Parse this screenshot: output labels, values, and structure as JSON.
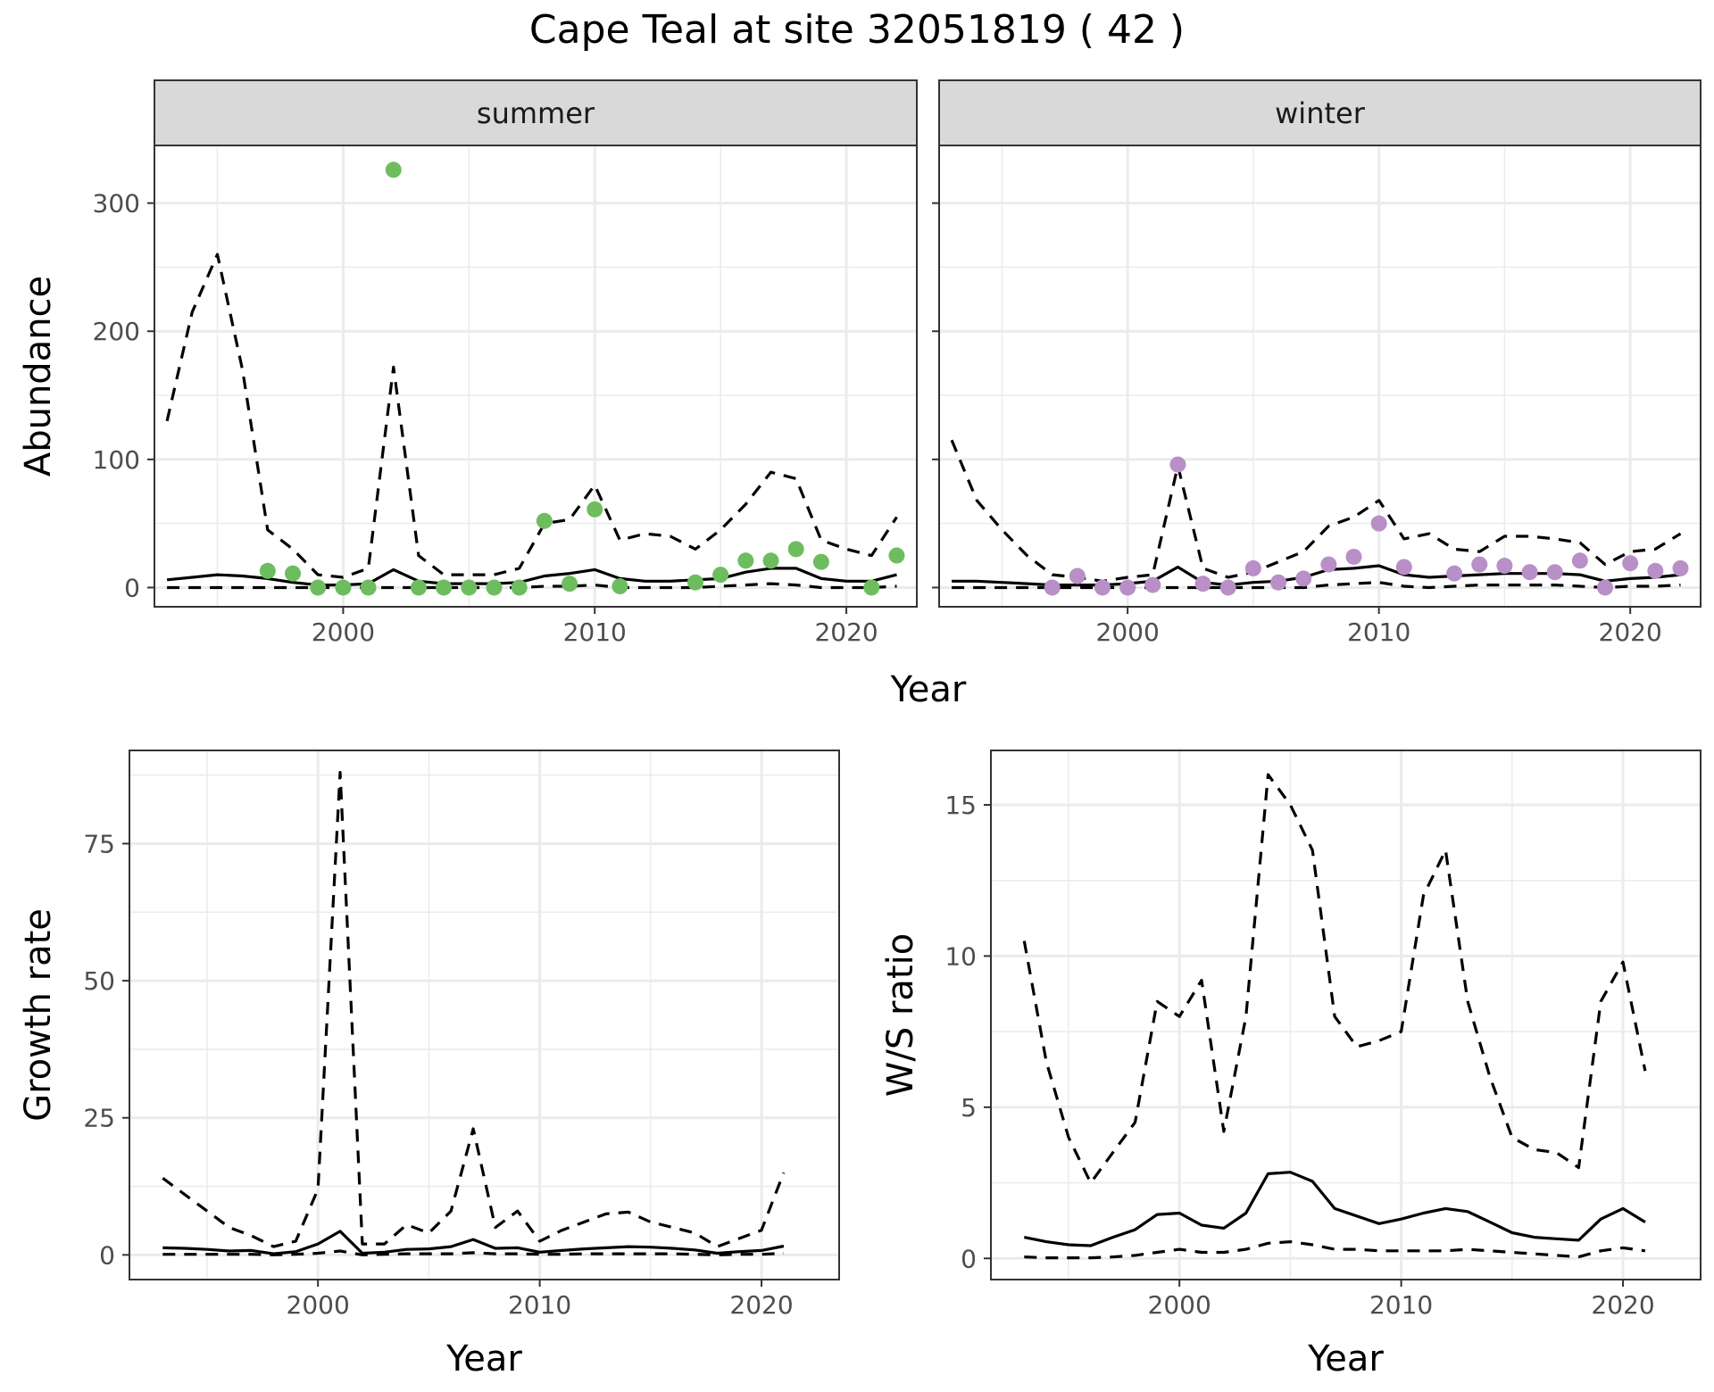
{
  "title": "Cape Teal at site 32051819 ( 42 )",
  "colors": {
    "summer_points": "#6dbd5f",
    "winter_points": "#b88fc7",
    "lines": "#000000",
    "strip_fill": "#d9d9d9",
    "grid": "#ebebeb"
  },
  "chart_data": [
    {
      "id": "summer",
      "type": "line",
      "title": "summer",
      "xlabel": "Year",
      "ylabel": "Abundance",
      "xlim": [
        1992.5,
        2022.8
      ],
      "ylim": [
        -15,
        345
      ],
      "xticks": [
        2000,
        2010,
        2020
      ],
      "yticks": [
        0,
        100,
        200,
        300
      ],
      "grid": true,
      "legend": "none",
      "x": [
        1993,
        1994,
        1995,
        1996,
        1997,
        1998,
        1999,
        2000,
        2001,
        2002,
        2003,
        2004,
        2005,
        2006,
        2007,
        2008,
        2009,
        2010,
        2011,
        2012,
        2013,
        2014,
        2015,
        2016,
        2017,
        2018,
        2019,
        2020,
        2021,
        2022
      ],
      "series": [
        {
          "role": "mean",
          "style": "solid",
          "values": [
            6,
            8,
            10,
            9,
            7,
            4,
            2,
            2,
            3,
            14,
            5,
            3,
            3,
            3,
            4,
            9,
            11,
            14,
            7,
            5,
            5,
            6,
            7,
            12,
            15,
            15,
            7,
            5,
            5,
            10
          ]
        },
        {
          "role": "upper",
          "style": "dashed",
          "values": [
            130,
            215,
            260,
            170,
            45,
            30,
            10,
            8,
            15,
            172,
            25,
            10,
            10,
            10,
            15,
            50,
            53,
            80,
            37,
            42,
            40,
            30,
            45,
            65,
            90,
            85,
            37,
            30,
            25,
            55
          ]
        },
        {
          "role": "lower",
          "style": "dashed",
          "values": [
            0,
            0,
            0,
            0,
            0,
            0,
            0,
            0,
            0,
            0,
            0,
            0,
            0,
            0,
            0,
            1,
            1,
            2,
            0,
            0,
            0,
            0,
            1,
            2,
            3,
            2,
            0,
            0,
            0,
            1
          ]
        },
        {
          "role": "observed",
          "style": "points",
          "x": [
            1997,
            1998,
            1999,
            2000,
            2001,
            2002,
            2003,
            2004,
            2005,
            2006,
            2007,
            2008,
            2009,
            2010,
            2011,
            2014,
            2015,
            2016,
            2017,
            2018,
            2019,
            2021,
            2022
          ],
          "values": [
            13,
            11,
            0,
            0,
            0,
            326,
            0,
            0,
            0,
            0,
            0,
            52,
            3,
            61,
            1,
            4,
            10,
            21,
            21,
            30,
            20,
            0,
            25
          ]
        }
      ]
    },
    {
      "id": "winter",
      "type": "line",
      "title": "winter",
      "xlabel": "Year",
      "ylabel": "",
      "xlim": [
        1992.5,
        2022.8
      ],
      "ylim": [
        -15,
        345
      ],
      "xticks": [
        2000,
        2010,
        2020
      ],
      "yticks": [
        0,
        100,
        200,
        300
      ],
      "grid": true,
      "legend": "none",
      "x": [
        1993,
        1994,
        1995,
        1996,
        1997,
        1998,
        1999,
        2000,
        2001,
        2002,
        2003,
        2004,
        2005,
        2006,
        2007,
        2008,
        2009,
        2010,
        2011,
        2012,
        2013,
        2014,
        2015,
        2016,
        2017,
        2018,
        2019,
        2020,
        2021,
        2022
      ],
      "series": [
        {
          "role": "mean",
          "style": "solid",
          "values": [
            5,
            5,
            4,
            3,
            2,
            2,
            2,
            3,
            5,
            16,
            4,
            2,
            4,
            5,
            8,
            14,
            15,
            17,
            10,
            8,
            9,
            10,
            11,
            11,
            11,
            10,
            5,
            7,
            8,
            10
          ]
        },
        {
          "role": "upper",
          "style": "dashed",
          "values": [
            115,
            68,
            45,
            25,
            10,
            8,
            5,
            8,
            10,
            95,
            15,
            8,
            12,
            20,
            28,
            48,
            55,
            68,
            38,
            42,
            30,
            28,
            40,
            40,
            38,
            35,
            18,
            28,
            30,
            42
          ]
        },
        {
          "role": "lower",
          "style": "dashed",
          "values": [
            0,
            0,
            0,
            0,
            0,
            0,
            0,
            0,
            0,
            0,
            0,
            0,
            0,
            0,
            0,
            2,
            3,
            4,
            1,
            0,
            1,
            2,
            2,
            2,
            2,
            1,
            0,
            1,
            1,
            2
          ]
        },
        {
          "role": "observed",
          "style": "points",
          "x": [
            1997,
            1998,
            1999,
            2000,
            2001,
            2002,
            2003,
            2004,
            2005,
            2006,
            2007,
            2008,
            2009,
            2010,
            2011,
            2013,
            2014,
            2015,
            2016,
            2017,
            2018,
            2019,
            2020,
            2021,
            2022
          ],
          "values": [
            0,
            9,
            0,
            0,
            2,
            96,
            3,
            0,
            15,
            4,
            7,
            18,
            24,
            50,
            16,
            11,
            18,
            17,
            12,
            12,
            21,
            0,
            19,
            13,
            15
          ]
        }
      ]
    },
    {
      "id": "growth",
      "type": "line",
      "title": "",
      "xlabel": "Year",
      "ylabel": "Growth rate",
      "xlim": [
        1991.5,
        2023.5
      ],
      "ylim": [
        -4.5,
        92
      ],
      "xticks": [
        2000,
        2010,
        2020
      ],
      "yticks": [
        0,
        25,
        50,
        75
      ],
      "grid": true,
      "legend": "none",
      "x": [
        1993,
        1994,
        1995,
        1996,
        1997,
        1998,
        1999,
        2000,
        2001,
        2002,
        2003,
        2004,
        2005,
        2006,
        2007,
        2008,
        2009,
        2010,
        2011,
        2012,
        2013,
        2014,
        2015,
        2016,
        2017,
        2018,
        2019,
        2020,
        2021
      ],
      "series": [
        {
          "role": "mean",
          "style": "solid",
          "values": [
            1.3,
            1.2,
            1.0,
            0.7,
            0.8,
            0.2,
            0.6,
            2.0,
            4.3,
            0.3,
            0.5,
            1.0,
            1.1,
            1.5,
            2.8,
            1.2,
            1.3,
            0.5,
            0.8,
            1.1,
            1.3,
            1.5,
            1.4,
            1.2,
            0.9,
            0.3,
            0.6,
            0.8,
            1.6
          ]
        },
        {
          "role": "upper",
          "style": "dashed",
          "values": [
            14,
            11,
            8,
            5,
            3.5,
            1.5,
            2.5,
            12,
            88,
            2,
            2,
            5.5,
            4,
            8,
            23,
            5,
            8,
            2.5,
            4.5,
            6,
            7.5,
            7.8,
            6,
            5,
            4,
            1.5,
            3,
            4.5,
            15
          ]
        },
        {
          "role": "lower",
          "style": "dashed",
          "values": [
            0.1,
            0.1,
            0.1,
            0.1,
            0.1,
            0,
            0.1,
            0.3,
            0.7,
            0,
            0.1,
            0.2,
            0.2,
            0.2,
            0.4,
            0.2,
            0.2,
            0.1,
            0.1,
            0.2,
            0.2,
            0.2,
            0.2,
            0.2,
            0.1,
            0,
            0.1,
            0.1,
            0.3
          ]
        }
      ]
    },
    {
      "id": "ratio",
      "type": "line",
      "title": "",
      "xlabel": "Year",
      "ylabel": "W/S ratio",
      "xlim": [
        1991.5,
        2023.5
      ],
      "ylim": [
        -0.7,
        16.8
      ],
      "xticks": [
        2000,
        2010,
        2020
      ],
      "yticks": [
        0,
        5,
        10,
        15
      ],
      "grid": true,
      "legend": "none",
      "x": [
        1993,
        1994,
        1995,
        1996,
        1997,
        1998,
        1999,
        2000,
        2001,
        2002,
        2003,
        2004,
        2005,
        2006,
        2007,
        2008,
        2009,
        2010,
        2011,
        2012,
        2013,
        2014,
        2015,
        2016,
        2017,
        2018,
        2019,
        2020,
        2021
      ],
      "series": [
        {
          "role": "mean",
          "style": "solid",
          "values": [
            0.7,
            0.55,
            0.45,
            0.42,
            0.7,
            0.95,
            1.45,
            1.5,
            1.1,
            1.0,
            1.5,
            2.8,
            2.85,
            2.55,
            1.65,
            1.4,
            1.15,
            1.3,
            1.5,
            1.65,
            1.55,
            1.2,
            0.85,
            0.7,
            0.65,
            0.6,
            1.3,
            1.65,
            1.2
          ]
        },
        {
          "role": "upper",
          "style": "dashed",
          "values": [
            10.5,
            6.5,
            4,
            2.5,
            3.5,
            4.5,
            8.5,
            8,
            9.2,
            4.2,
            8,
            16,
            15,
            13.5,
            8,
            7,
            7.2,
            7.5,
            12,
            13.5,
            8.5,
            6,
            4,
            3.6,
            3.5,
            3,
            8.5,
            9.8,
            6.2
          ]
        },
        {
          "role": "lower",
          "style": "dashed",
          "values": [
            0.05,
            0.02,
            0.02,
            0.02,
            0.05,
            0.1,
            0.2,
            0.3,
            0.2,
            0.2,
            0.3,
            0.5,
            0.55,
            0.45,
            0.3,
            0.3,
            0.25,
            0.25,
            0.25,
            0.25,
            0.3,
            0.25,
            0.2,
            0.15,
            0.1,
            0.05,
            0.25,
            0.35,
            0.25
          ]
        }
      ]
    }
  ]
}
